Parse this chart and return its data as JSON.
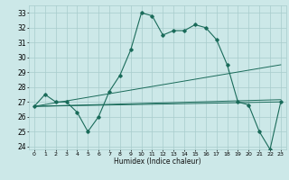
{
  "title": "",
  "xlabel": "Humidex (Indice chaleur)",
  "ylabel": "",
  "background_color": "#cce8e8",
  "grid_color": "#a8cccc",
  "line_color": "#1a6b5a",
  "xlim": [
    -0.5,
    23.5
  ],
  "ylim": [
    23.8,
    33.5
  ],
  "yticks": [
    24,
    25,
    26,
    27,
    28,
    29,
    30,
    31,
    32,
    33
  ],
  "xticks": [
    0,
    1,
    2,
    3,
    4,
    5,
    6,
    7,
    8,
    9,
    10,
    11,
    12,
    13,
    14,
    15,
    16,
    17,
    18,
    19,
    20,
    21,
    22,
    23
  ],
  "series_main": {
    "x": [
      0,
      1,
      2,
      3,
      4,
      5,
      6,
      7,
      8,
      9,
      10,
      11,
      12,
      13,
      14,
      15,
      16,
      17,
      18,
      19,
      20,
      21,
      22,
      23
    ],
    "y": [
      26.7,
      27.5,
      27.0,
      27.0,
      26.3,
      25.0,
      26.0,
      27.7,
      28.8,
      30.5,
      33.0,
      32.8,
      31.5,
      31.8,
      31.8,
      32.2,
      32.0,
      31.2,
      29.5,
      27.0,
      26.8,
      25.0,
      23.8,
      27.0
    ]
  },
  "series_lines": [
    {
      "x": [
        0,
        23
      ],
      "y": [
        26.7,
        27.0
      ]
    },
    {
      "x": [
        0,
        23
      ],
      "y": [
        26.7,
        29.5
      ]
    },
    {
      "x": [
        0,
        23
      ],
      "y": [
        26.7,
        27.15
      ]
    }
  ]
}
